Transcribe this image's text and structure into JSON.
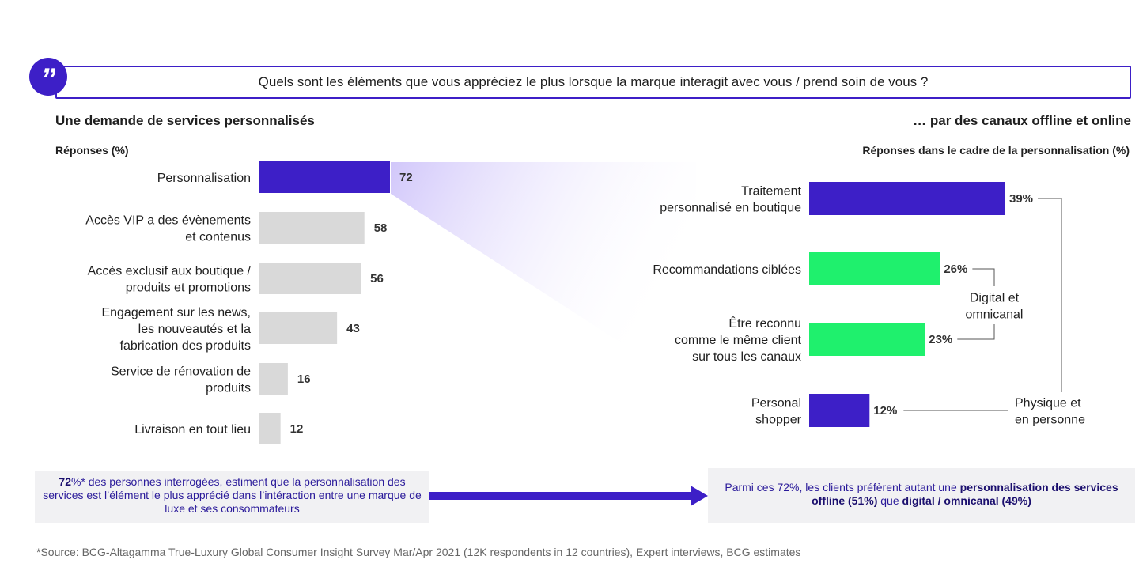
{
  "question": "Quels sont les éléments que vous appréciez le plus lorsque la marque interagit avec vous / prend soin de vous ?",
  "left_title": "Une demande de services personnalisés",
  "right_title": "… par des  canaux offline et online",
  "left_subtitle": "Réponses (%)",
  "right_subtitle": "Réponses dans le cadre de la personnalisation (%)",
  "colors": {
    "purple": "#3d1fc7",
    "grey": "#d9d9d9",
    "green": "#1ff06d",
    "highlight": "#d9d0fb"
  },
  "chart_data": [
    {
      "type": "bar",
      "orientation": "horizontal",
      "ylabel": "Réponses (%)",
      "categories": [
        [
          "Personnalisation"
        ],
        [
          "Accès VIP a des évènements",
          "et contenus"
        ],
        [
          "Accès exclusif aux boutique /",
          "produits et promotions"
        ],
        [
          "Engagement sur les news,",
          "les nouveautés et la",
          "fabrication des produits"
        ],
        [
          "Service de rénovation de",
          "produits"
        ],
        [
          "Livraison en tout lieu"
        ]
      ],
      "values": [
        72,
        58,
        56,
        43,
        16,
        12
      ],
      "value_labels": [
        "72",
        "58",
        "56",
        "43",
        "16",
        "12"
      ],
      "highlight_index": 0
    },
    {
      "type": "bar",
      "orientation": "horizontal",
      "ylabel": "Réponses dans le cadre de la personnalisation (%)",
      "categories": [
        [
          "Traitement",
          "personnalisé en boutique"
        ],
        [
          "Recommandations ciblées"
        ],
        [
          "Être reconnu",
          "comme le même client",
          "sur tous les canaux"
        ],
        [
          "Personal",
          "shopper"
        ]
      ],
      "values": [
        39,
        26,
        23,
        12
      ],
      "value_labels": [
        "39%",
        "26%",
        "23%",
        "12%"
      ],
      "groups": [
        {
          "label": [
            "Digital et",
            "omnicanal"
          ],
          "members": [
            1,
            2
          ]
        },
        {
          "label": [
            "Physique et",
            "en personne"
          ],
          "members": [
            0,
            3
          ]
        }
      ]
    }
  ],
  "note_left": {
    "bold": "72",
    "text": "%* des personnes interrogées, estiment que la personnalisation des services est l’élément le plus apprécié dans l’intéraction entre une marque de luxe et ses consommateurs"
  },
  "note_right": {
    "part1": "Parmi ces 72%, les clients préfèrent autant une ",
    "bold1": "personnalisation des services offline (51%)",
    "part2": " que ",
    "bold2": "digital / omnicanal (49%)"
  },
  "source": "*Source: BCG-Altagamma True-Luxury Global Consumer Insight Survey Mar/Apr 2021 (12K respondents in 12 countries), Expert interviews, BCG estimates"
}
